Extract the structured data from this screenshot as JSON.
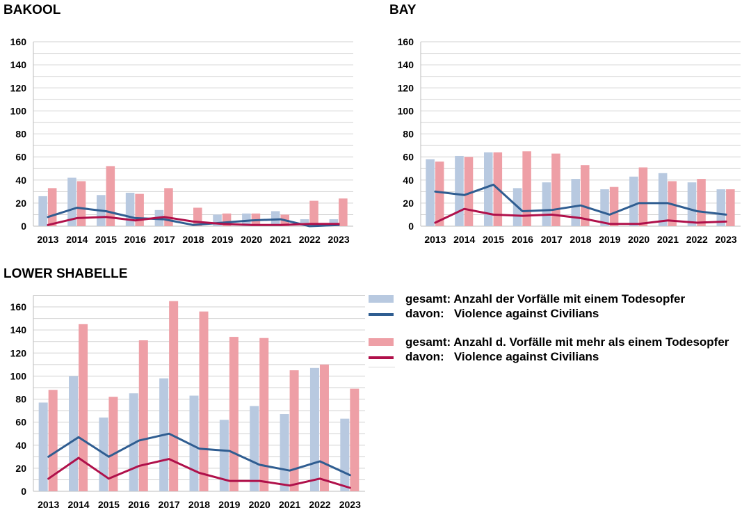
{
  "colors": {
    "bar_single": "#b8c9e0",
    "bar_multi": "#ee9fa6",
    "line_single": "#2f5d91",
    "line_multi": "#b0104a",
    "grid": "#d0d0d0"
  },
  "legend": {
    "items": [
      {
        "icon": "bar-swatch",
        "color": "#b8c9e0",
        "label": "gesamt: Anzahl der Vorfälle mit einem Todesopfer"
      },
      {
        "icon": "line-swatch",
        "color": "#2f5d91",
        "label": "davon:   Violence against Civilians"
      },
      {
        "icon": "bar-swatch",
        "color": "#ee9fa6",
        "label": "gesamt: Anzahl d. Vorfälle mit mehr als einem Todesopfer"
      },
      {
        "icon": "line-swatch",
        "color": "#b0104a",
        "label": "davon:   Violence against Civilians"
      }
    ]
  },
  "chart_data": [
    {
      "type": "bar",
      "title": "BAKOOL",
      "categories": [
        "2013",
        "2014",
        "2015",
        "2016",
        "2017",
        "2018",
        "2019",
        "2020",
        "2021",
        "2022",
        "2023"
      ],
      "ylim": [
        0,
        160
      ],
      "yticks": [
        0,
        20,
        40,
        60,
        80,
        100,
        120,
        140,
        160
      ],
      "series": [
        {
          "name": "gesamt: Anzahl der Vorfälle mit einem Todesopfer",
          "kind": "bar",
          "values": [
            26,
            42,
            27,
            29,
            14,
            0,
            10,
            11,
            13,
            6,
            6
          ]
        },
        {
          "name": "gesamt: Anzahl d. Vorfälle mit mehr als einem Todesopfer",
          "kind": "bar",
          "values": [
            33,
            39,
            52,
            28,
            33,
            16,
            11,
            11,
            10,
            22,
            24
          ]
        },
        {
          "name": "davon: Violence against Civilians",
          "kind": "line",
          "ref": "single",
          "values": [
            8,
            16,
            13,
            7,
            6,
            1,
            3,
            5,
            6,
            0,
            1
          ]
        },
        {
          "name": "davon: Violence against Civilians",
          "kind": "line",
          "ref": "multi",
          "values": [
            1,
            7,
            8,
            5,
            8,
            4,
            2,
            1,
            1,
            2,
            2
          ]
        }
      ]
    },
    {
      "type": "bar",
      "title": "BAY",
      "categories": [
        "2013",
        "2014",
        "2015",
        "2016",
        "2017",
        "2018",
        "2019",
        "2020",
        "2021",
        "2022",
        "2023"
      ],
      "ylim": [
        0,
        160
      ],
      "yticks": [
        0,
        20,
        40,
        60,
        80,
        100,
        120,
        140,
        160
      ],
      "series": [
        {
          "name": "gesamt: Anzahl der Vorfälle mit einem Todesopfer",
          "kind": "bar",
          "values": [
            58,
            61,
            64,
            33,
            38,
            41,
            32,
            43,
            46,
            38,
            32
          ]
        },
        {
          "name": "gesamt: Anzahl d. Vorfälle mit mehr als einem Todesopfer",
          "kind": "bar",
          "values": [
            56,
            60,
            64,
            65,
            63,
            53,
            34,
            51,
            39,
            41,
            32
          ]
        },
        {
          "name": "davon: Violence against Civilians",
          "kind": "line",
          "ref": "single",
          "values": [
            30,
            27,
            36,
            13,
            14,
            18,
            10,
            20,
            20,
            13,
            10
          ]
        },
        {
          "name": "davon: Violence against Civilians",
          "kind": "line",
          "ref": "multi",
          "values": [
            3,
            15,
            10,
            9,
            10,
            7,
            2,
            2,
            5,
            3,
            4
          ]
        }
      ]
    },
    {
      "type": "bar",
      "title": "LOWER SHABELLE",
      "categories": [
        "2013",
        "2014",
        "2015",
        "2016",
        "2017",
        "2018",
        "2019",
        "2020",
        "2021",
        "2022",
        "2023"
      ],
      "ylim": [
        0,
        170
      ],
      "yticks": [
        0,
        20,
        40,
        60,
        80,
        100,
        120,
        140,
        160
      ],
      "series": [
        {
          "name": "gesamt: Anzahl der Vorfälle mit einem Todesopfer",
          "kind": "bar",
          "values": [
            77,
            100,
            64,
            85,
            98,
            83,
            62,
            74,
            67,
            107,
            63
          ]
        },
        {
          "name": "gesamt: Anzahl d. Vorfälle mit mehr als einem Todesopfer",
          "kind": "bar",
          "values": [
            88,
            145,
            82,
            131,
            165,
            156,
            134,
            133,
            105,
            110,
            89
          ]
        },
        {
          "name": "davon: Violence against Civilians",
          "kind": "line",
          "ref": "single",
          "values": [
            30,
            47,
            30,
            44,
            50,
            37,
            35,
            23,
            18,
            26,
            14
          ]
        },
        {
          "name": "davon: Violence against Civilians",
          "kind": "line",
          "ref": "multi",
          "values": [
            11,
            29,
            11,
            22,
            28,
            16,
            9,
            9,
            5,
            11,
            3
          ]
        }
      ]
    }
  ]
}
